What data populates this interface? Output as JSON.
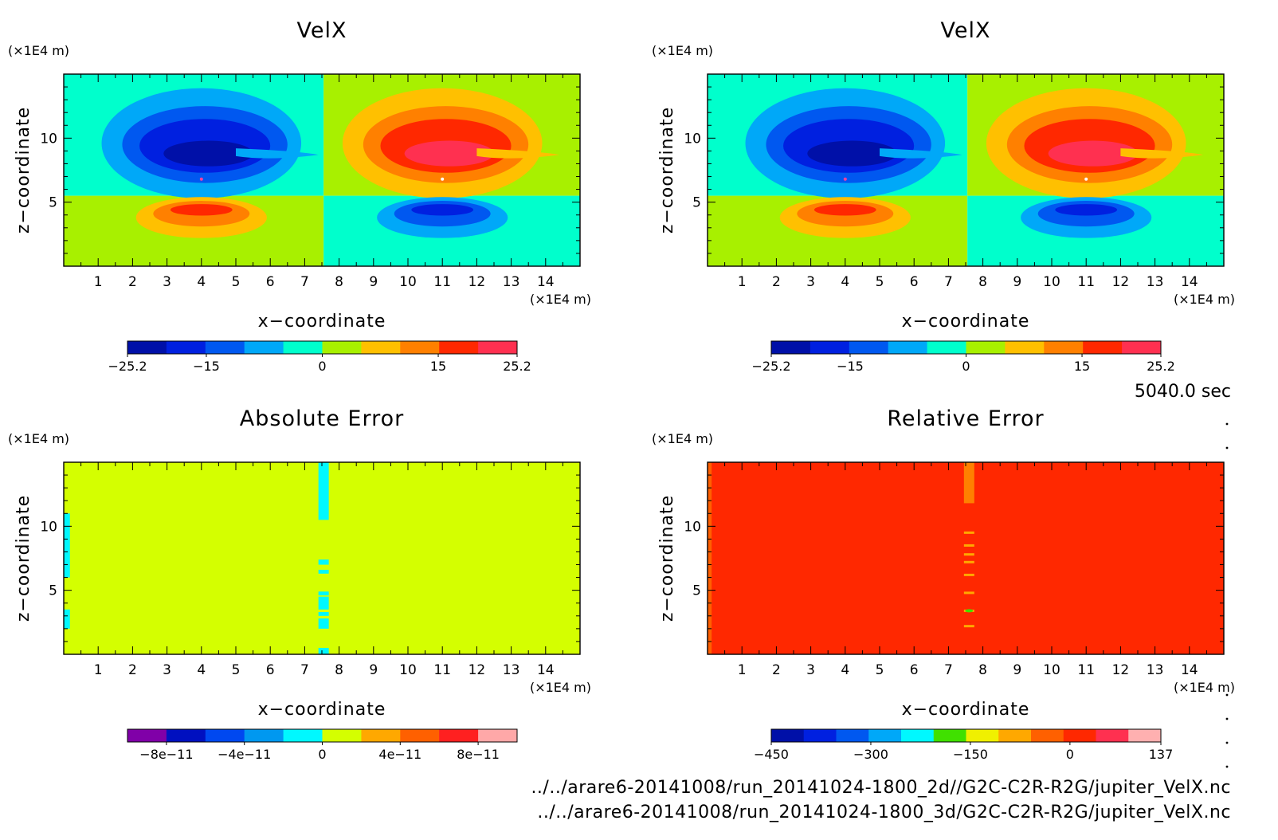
{
  "time_label": "5040.0 sec",
  "footer_lines": [
    "../../arare6-20141008/run_20141024-1800_2d//G2C-C2R-R2G/jupiter_VelX.nc",
    "../../arare6-20141008/run_20141024-1800_3d/G2C-C2R-R2G/jupiter_VelX.nc"
  ],
  "chart_data": [
    {
      "type": "heatmap",
      "title": "VelX",
      "xlabel": "x−coordinate",
      "ylabel": "z−coordinate",
      "x_unit": "(×1E4 m)",
      "y_unit": "(×1E4 m)",
      "xlim": [
        0,
        15
      ],
      "ylim": [
        0,
        15
      ],
      "xticks": [
        "1",
        "2",
        "3",
        "4",
        "5",
        "6",
        "7",
        "8",
        "9",
        "10",
        "11",
        "12",
        "13",
        "14"
      ],
      "yticks": [
        "5",
        "10"
      ],
      "colorbar": {
        "colors": [
          "#0010a8",
          "#0020e0",
          "#0058f0",
          "#00a8f8",
          "#00ffcc",
          "#a8f000",
          "#ffc000",
          "#ff8000",
          "#ff2800",
          "#ff3050"
        ],
        "labels": [
          "−25.2",
          "−15",
          "0",
          "15",
          "25.2"
        ],
        "label_values": [
          -25.2,
          -15,
          0,
          15,
          25.2
        ],
        "range": [
          -25.2,
          25.2
        ]
      },
      "field": "velx",
      "background_left_upper": "#00ffcc",
      "background_left_lower": "#a8f000",
      "extrema": {
        "min": -25.2,
        "max": 25.2,
        "min_location": [
          4.0,
          6.8
        ],
        "max_location": [
          11.0,
          6.8
        ]
      }
    },
    {
      "type": "heatmap",
      "title": "VelX",
      "xlabel": "x−coordinate",
      "ylabel": "z−coordinate",
      "x_unit": "(×1E4 m)",
      "y_unit": "(×1E4 m)",
      "xlim": [
        0,
        15
      ],
      "ylim": [
        0,
        15
      ],
      "xticks": [
        "1",
        "2",
        "3",
        "4",
        "5",
        "6",
        "7",
        "8",
        "9",
        "10",
        "11",
        "12",
        "13",
        "14"
      ],
      "yticks": [
        "5",
        "10"
      ],
      "colorbar": {
        "colors": [
          "#0010a8",
          "#0020e0",
          "#0058f0",
          "#00a8f8",
          "#00ffcc",
          "#a8f000",
          "#ffc000",
          "#ff8000",
          "#ff2800",
          "#ff3050"
        ],
        "labels": [
          "−25.2",
          "−15",
          "0",
          "15",
          "25.2"
        ],
        "label_values": [
          -25.2,
          -15,
          0,
          15,
          25.2
        ],
        "range": [
          -25.2,
          25.2
        ]
      },
      "field": "velx",
      "background_left_upper": "#00ffcc",
      "background_left_lower": "#a8f000",
      "extrema": {
        "min": -25.2,
        "max": 25.2,
        "min_location": [
          4.0,
          6.8
        ],
        "max_location": [
          11.0,
          6.8
        ]
      }
    },
    {
      "type": "heatmap",
      "title": "Absolute Error",
      "xlabel": "x−coordinate",
      "ylabel": "z−coordinate",
      "x_unit": "(×1E4 m)",
      "y_unit": "(×1E4 m)",
      "xlim": [
        0,
        15
      ],
      "ylim": [
        0,
        15
      ],
      "xticks": [
        "1",
        "2",
        "3",
        "4",
        "5",
        "6",
        "7",
        "8",
        "9",
        "10",
        "11",
        "12",
        "13",
        "14"
      ],
      "yticks": [
        "5",
        "10"
      ],
      "colorbar": {
        "colors": [
          "#8000a8",
          "#0010c0",
          "#0048f0",
          "#0098f0",
          "#00f8ff",
          "#d4ff00",
          "#ffa800",
          "#ff6000",
          "#ff2020",
          "#ffa8a8"
        ],
        "labels": [
          "−8e−11",
          "−4e−11",
          "0",
          "4e−11",
          "8e−11"
        ],
        "label_values": [
          -8e-11,
          -4e-11,
          0,
          4e-11,
          8e-11
        ],
        "range": [
          -1e-10,
          1e-10
        ]
      },
      "field": "abs_error",
      "background": "#d4ff00",
      "anomaly_color": "#00f8ff",
      "anomaly_column_x": [
        7.4,
        7.7
      ],
      "anomaly_z_ranges": [
        [
          10.5,
          15.0
        ],
        [
          7.0,
          7.4
        ],
        [
          6.3,
          6.6
        ],
        [
          4.6,
          4.9
        ],
        [
          3.5,
          4.5
        ],
        [
          3.0,
          3.3
        ],
        [
          2.0,
          2.8
        ],
        [
          0.0,
          0.5
        ]
      ],
      "edge_anomaly_z_ranges": [
        [
          6.0,
          11.0
        ],
        [
          2.0,
          3.5
        ]
      ]
    },
    {
      "type": "heatmap",
      "title": "Relative Error",
      "xlabel": "x−coordinate",
      "ylabel": "z−coordinate",
      "x_unit": "(×1E4 m)",
      "y_unit": "(×1E4 m)",
      "xlim": [
        0,
        15
      ],
      "ylim": [
        0,
        15
      ],
      "xticks": [
        "1",
        "2",
        "3",
        "4",
        "5",
        "6",
        "7",
        "8",
        "9",
        "10",
        "11",
        "12",
        "13",
        "14"
      ],
      "yticks": [
        "5",
        "10"
      ],
      "colorbar": {
        "colors": [
          "#0010a8",
          "#0020e0",
          "#0058f0",
          "#00a8f8",
          "#00f8ff",
          "#40e000",
          "#f0f000",
          "#ffa800",
          "#ff6000",
          "#ff2800",
          "#ff3050",
          "#ffb0b0"
        ],
        "labels": [
          "−450",
          "−300",
          "−150",
          "0",
          "137"
        ],
        "label_values": [
          -450,
          -300,
          -150,
          0,
          137
        ],
        "range": [
          -450,
          137
        ]
      },
      "field": "rel_error",
      "background": "#ff2800",
      "anomaly_color": "#ff8000",
      "anomaly_column_x": [
        7.45,
        7.75
      ],
      "anomaly_z_ranges": [
        [
          11.8,
          15.0
        ]
      ],
      "speck_z": [
        9.5,
        8.5,
        7.8,
        7.2,
        6.2,
        4.8,
        3.4,
        2.2
      ]
    }
  ]
}
